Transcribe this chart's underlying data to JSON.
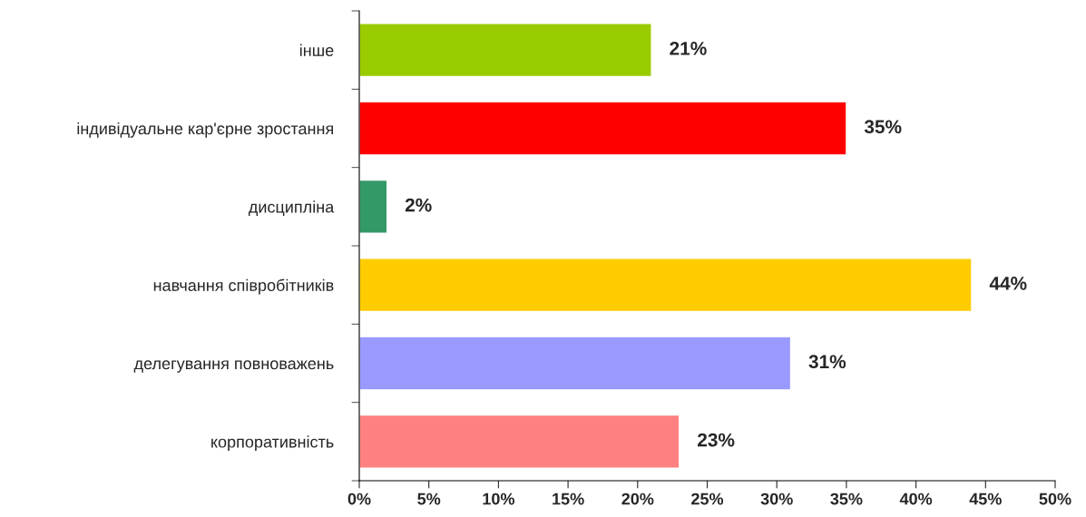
{
  "chart_data": {
    "type": "bar",
    "orientation": "horizontal",
    "categories": [
      "інше",
      "індивідуальне кар'єрне зростання",
      "дисципліна",
      "навчання співробітників",
      "делегування повноважень",
      "корпоративність"
    ],
    "values": [
      21,
      35,
      2,
      44,
      31,
      23
    ],
    "colors": [
      "#99cc00",
      "#ff0000",
      "#339966",
      "#ffcc00",
      "#9999ff",
      "#ff8080"
    ],
    "value_labels": [
      "21%",
      "35%",
      "2%",
      "44%",
      "31%",
      "23%"
    ],
    "xlim": [
      0,
      50
    ],
    "xticks": [
      {
        "value": 0,
        "label": "0%"
      },
      {
        "value": 5,
        "label": "5%"
      },
      {
        "value": 10,
        "label": "10%"
      },
      {
        "value": 15,
        "label": "15%"
      },
      {
        "value": 20,
        "label": "20%"
      },
      {
        "value": 25,
        "label": "25%"
      },
      {
        "value": 30,
        "label": "30%"
      },
      {
        "value": 35,
        "label": "35%"
      },
      {
        "value": 40,
        "label": "40%"
      },
      {
        "value": 45,
        "label": "45%"
      },
      {
        "value": 50,
        "label": "50%"
      }
    ],
    "grid": false,
    "legend": false
  }
}
